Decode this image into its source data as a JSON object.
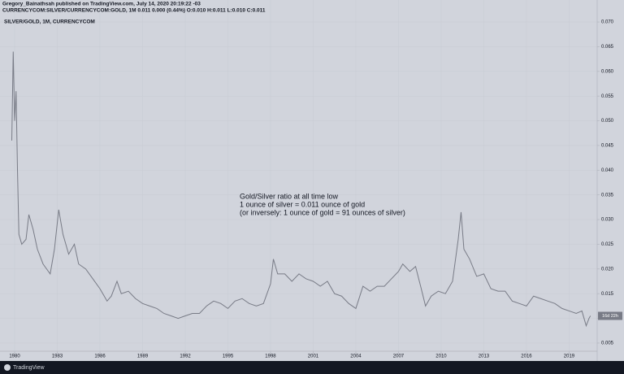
{
  "header": {
    "publisher_line": "Gregory_Bainathsah published on TradingView.com, July 14, 2020 20:19:22 -03",
    "symbol_line": "CURRENCYCOM:SILVER/CURRENCYCOM:GOLD, 1M 0.011 0.000 (0.44%) O:0.010 H:0.011 L:0.010 C:0.011"
  },
  "footer": {
    "brand": "TradingView"
  },
  "chart_data": {
    "type": "line",
    "title": "SILVER/GOLD, 1M, CURRENCYCOM",
    "annotation": [
      "Gold/Silver ratio at all time low",
      "1 ounce of silver = 0.011 ounce of gold",
      "(or inversely: 1 ounce of gold = 91 ounces of silver)"
    ],
    "countdown": "16d 22h",
    "color": "#787b86",
    "x": [
      1979.8,
      1979.9,
      1980.0,
      1980.1,
      1980.2,
      1980.3,
      1980.5,
      1980.8,
      1981.0,
      1981.3,
      1981.6,
      1982.0,
      1982.5,
      1982.8,
      1983.1,
      1983.4,
      1983.8,
      1984.2,
      1984.5,
      1985.0,
      1985.5,
      1986.0,
      1986.5,
      1986.8,
      1987.2,
      1987.5,
      1988.0,
      1988.5,
      1989.0,
      1989.5,
      1990.0,
      1990.5,
      1991.0,
      1991.5,
      1992.0,
      1992.5,
      1993.0,
      1993.5,
      1994.0,
      1994.5,
      1995.0,
      1995.5,
      1996.0,
      1996.5,
      1997.0,
      1997.5,
      1998.0,
      1998.2,
      1998.5,
      1999.0,
      1999.5,
      2000.0,
      2000.5,
      2001.0,
      2001.5,
      2002.0,
      2002.5,
      2003.0,
      2003.5,
      2004.0,
      2004.5,
      2005.0,
      2005.5,
      2006.0,
      2006.5,
      2007.0,
      2007.3,
      2007.8,
      2008.2,
      2008.6,
      2008.9,
      2009.3,
      2009.8,
      2010.3,
      2010.8,
      2011.2,
      2011.4,
      2011.6,
      2012.0,
      2012.5,
      2013.0,
      2013.5,
      2014.0,
      2014.5,
      2015.0,
      2015.5,
      2016.0,
      2016.5,
      2017.0,
      2017.5,
      2018.0,
      2018.5,
      2019.0,
      2019.5,
      2019.9,
      2020.2,
      2020.4,
      2020.5
    ],
    "values": [
      0.046,
      0.064,
      0.05,
      0.056,
      0.04,
      0.027,
      0.025,
      0.026,
      0.031,
      0.028,
      0.024,
      0.021,
      0.019,
      0.024,
      0.032,
      0.027,
      0.023,
      0.025,
      0.021,
      0.02,
      0.018,
      0.016,
      0.0135,
      0.0145,
      0.0175,
      0.015,
      0.0155,
      0.014,
      0.013,
      0.0125,
      0.012,
      0.011,
      0.0105,
      0.01,
      0.0105,
      0.011,
      0.011,
      0.0125,
      0.0135,
      0.013,
      0.012,
      0.0135,
      0.014,
      0.013,
      0.0125,
      0.013,
      0.017,
      0.022,
      0.019,
      0.019,
      0.0175,
      0.019,
      0.018,
      0.0175,
      0.0165,
      0.0175,
      0.015,
      0.0145,
      0.013,
      0.012,
      0.0165,
      0.0155,
      0.0165,
      0.0165,
      0.018,
      0.0195,
      0.021,
      0.0195,
      0.0205,
      0.016,
      0.0125,
      0.0145,
      0.0155,
      0.015,
      0.0175,
      0.026,
      0.0315,
      0.024,
      0.022,
      0.0185,
      0.019,
      0.016,
      0.0155,
      0.0155,
      0.0135,
      0.013,
      0.0125,
      0.0145,
      0.014,
      0.0135,
      0.013,
      0.012,
      0.0115,
      0.011,
      0.0115,
      0.0085,
      0.01,
      0.0105
    ],
    "xlim": [
      1978.97,
      2020.86
    ],
    "xticks": [
      1980,
      1983,
      1986,
      1989,
      1992,
      1995,
      1998,
      2001,
      2004,
      2007,
      2010,
      2013,
      2016,
      2019
    ],
    "ylim": [
      0.004,
      0.071
    ],
    "yticks": [
      {
        "value": 0.005,
        "label": "0.005"
      },
      {
        "value": 0.01,
        "label": "0.010"
      },
      {
        "value": 0.015,
        "label": "0.015"
      },
      {
        "value": 0.02,
        "label": "0.020"
      },
      {
        "value": 0.025,
        "label": "0.025"
      },
      {
        "value": 0.03,
        "label": "0.030"
      },
      {
        "value": 0.035,
        "label": "0.035"
      },
      {
        "value": 0.04,
        "label": "0.040"
      },
      {
        "value": 0.045,
        "label": "0.045"
      },
      {
        "value": 0.05,
        "label": "0.050"
      },
      {
        "value": 0.055,
        "label": "0.055"
      },
      {
        "value": 0.06,
        "label": "0.060"
      },
      {
        "value": 0.065,
        "label": "0.065"
      },
      {
        "value": 0.07,
        "label": "0.070"
      }
    ],
    "grid": true
  }
}
